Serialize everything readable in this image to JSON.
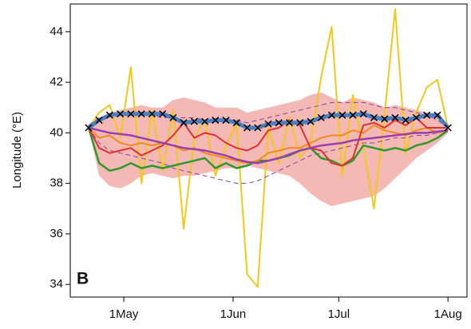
{
  "chart_data": {
    "type": "line",
    "ylabel": "Longitude (°E)",
    "panel_label": "B",
    "xlim": [
      -15.2,
      97.4
    ],
    "xticks": [
      {
        "value": 0,
        "label": "1May"
      },
      {
        "value": 31,
        "label": "1Jun"
      },
      {
        "value": 61,
        "label": "1Jul"
      },
      {
        "value": 92,
        "label": "1Aug"
      }
    ],
    "ylim": [
      33.5,
      45.1
    ],
    "yticks": [
      34,
      36,
      38,
      40,
      42,
      44
    ],
    "x": [
      -10,
      -7,
      -4,
      -1,
      2,
      5,
      8,
      11,
      14,
      17,
      20,
      23,
      26,
      29,
      32,
      35,
      38,
      41,
      44,
      47,
      50,
      53,
      56,
      59,
      62,
      65,
      68,
      71,
      74,
      77,
      80,
      83,
      86,
      89,
      92
    ],
    "series": [
      {
        "style": "band",
        "color": "#f4b8b5",
        "high": [
          40.3,
          40.6,
          40.8,
          40.9,
          41.0,
          41.1,
          41.0,
          41.0,
          41.3,
          41.4,
          41.3,
          41.2,
          41.0,
          41.0,
          41.0,
          40.8,
          40.9,
          41.0,
          41.1,
          41.2,
          41.3,
          41.5,
          41.6,
          41.4,
          41.2,
          41.4,
          41.3,
          41.2,
          41.0,
          41.1,
          41.0,
          40.9,
          40.8,
          40.7,
          40.2
        ],
        "low": [
          40.2,
          38.3,
          37.9,
          37.8,
          38.0,
          38.3,
          38.4,
          38.3,
          38.2,
          38.3,
          38.3,
          38.4,
          38.5,
          38.6,
          38.6,
          38.7,
          38.6,
          38.5,
          38.4,
          38.3,
          38.0,
          37.6,
          37.3,
          37.1,
          37.2,
          37.3,
          37.4,
          37.5,
          37.8,
          38.2,
          38.6,
          39.0,
          39.3,
          39.6,
          40.0
        ]
      },
      {
        "style": "line",
        "color": "#f2c81a",
        "width": 2,
        "values": [
          40.2,
          40.8,
          41.1,
          39.8,
          42.6,
          38.0,
          40.9,
          38.5,
          40.9,
          36.2,
          39.8,
          40.5,
          38.3,
          39.5,
          40.4,
          34.4,
          33.9,
          40.2,
          38.8,
          40.6,
          39.0,
          39.6,
          42.2,
          44.2,
          38.3,
          41.5,
          39.4,
          37.0,
          40.7,
          44.9,
          39.2,
          40.8,
          41.8,
          42.1,
          40.2
        ]
      },
      {
        "style": "dashed",
        "color": "#8a3fa0",
        "width": 1,
        "values": [
          40.3,
          40.6,
          40.7,
          40.8,
          40.8,
          40.8,
          40.7,
          40.6,
          40.6,
          40.6,
          40.6,
          40.5,
          40.5,
          40.5,
          40.5,
          40.4,
          40.5,
          40.6,
          40.7,
          40.8,
          40.9,
          41.0,
          41.1,
          41.2,
          41.2,
          41.2,
          41.2,
          41.1,
          41.0,
          41.0,
          40.9,
          40.8,
          40.7,
          40.5,
          40.2
        ]
      },
      {
        "style": "dashed",
        "color": "#8a3fa0",
        "width": 1,
        "values": [
          40.2,
          39.6,
          39.3,
          39.2,
          39.1,
          39.0,
          38.9,
          38.8,
          38.6,
          38.5,
          38.4,
          38.3,
          38.2,
          38.1,
          38.0,
          38.0,
          38.1,
          38.3,
          38.5,
          38.7,
          38.9,
          39.1,
          39.2,
          39.3,
          39.4,
          39.5,
          39.6,
          39.6,
          39.7,
          39.8,
          39.8,
          39.9,
          39.9,
          40.0,
          40.1
        ]
      },
      {
        "style": "line",
        "color": "#2e9a2e",
        "width": 2.5,
        "values": [
          40.2,
          38.8,
          38.5,
          38.6,
          38.8,
          38.6,
          38.7,
          38.6,
          38.7,
          38.8,
          38.9,
          39.0,
          38.6,
          38.8,
          38.6,
          38.7,
          38.9,
          38.9,
          39.0,
          39.1,
          39.3,
          39.4,
          39.0,
          38.9,
          38.7,
          38.9,
          39.5,
          39.4,
          39.3,
          39.4,
          39.3,
          39.5,
          39.6,
          39.8,
          40.1
        ]
      },
      {
        "style": "line",
        "color": "#f08a1c",
        "width": 2,
        "values": [
          40.2,
          39.8,
          39.9,
          39.6,
          39.5,
          39.6,
          39.5,
          39.6,
          39.5,
          39.3,
          39.4,
          39.2,
          39.1,
          39.0,
          38.9,
          38.8,
          38.9,
          39.2,
          39.3,
          39.4,
          39.4,
          39.6,
          39.8,
          39.9,
          39.9,
          40.1,
          40.0,
          40.3,
          40.1,
          40.0,
          39.9,
          40.1,
          40.2,
          40.0,
          40.1
        ]
      },
      {
        "style": "line",
        "color": "#e03030",
        "width": 2,
        "values": [
          40.2,
          39.4,
          39.2,
          39.3,
          39.4,
          39.1,
          39.3,
          39.5,
          39.9,
          40.4,
          39.8,
          40.0,
          39.9,
          39.6,
          39.4,
          39.3,
          39.5,
          40.1,
          40.2,
          40.5,
          40.3,
          39.4,
          39.3,
          38.8,
          38.7,
          39.0,
          40.3,
          40.4,
          40.2,
          40.5,
          40.3,
          40.6,
          40.2,
          40.2,
          40.2
        ]
      },
      {
        "style": "line",
        "color": "#9b3fb0",
        "width": 2.5,
        "values": [
          40.2,
          40.1,
          40.0,
          39.95,
          39.9,
          39.8,
          39.7,
          39.6,
          39.5,
          39.4,
          39.35,
          39.3,
          39.2,
          39.1,
          38.95,
          38.85,
          38.8,
          38.9,
          39.0,
          39.15,
          39.3,
          39.4,
          39.5,
          39.55,
          39.6,
          39.7,
          39.75,
          39.8,
          39.85,
          39.9,
          39.95,
          40.0,
          40.0,
          40.05,
          40.1
        ]
      },
      {
        "style": "line",
        "color": "#4a7fbf",
        "width": 5,
        "markers": "x",
        "marker_color": "#000000",
        "values": [
          40.2,
          40.5,
          40.7,
          40.75,
          40.75,
          40.75,
          40.75,
          40.75,
          40.6,
          40.4,
          40.45,
          40.45,
          40.5,
          40.5,
          40.4,
          40.2,
          40.2,
          40.35,
          40.4,
          40.4,
          40.4,
          40.45,
          40.6,
          40.7,
          40.7,
          40.7,
          40.75,
          40.6,
          40.55,
          40.6,
          40.5,
          40.6,
          40.7,
          40.7,
          40.2
        ]
      }
    ]
  }
}
